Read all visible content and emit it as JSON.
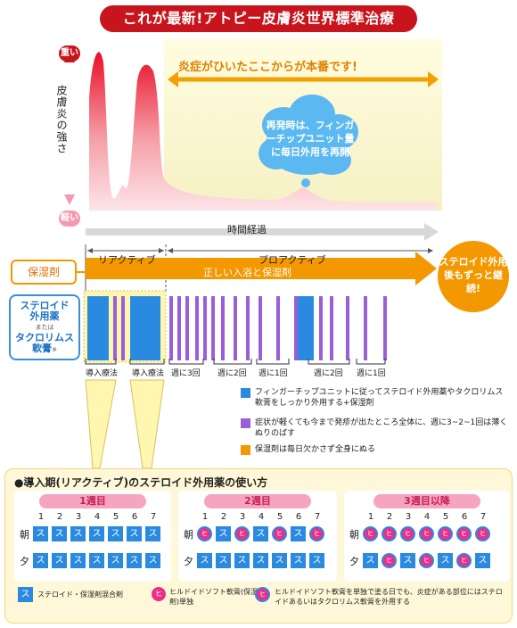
{
  "title": "これが最新!アトピー皮膚炎世界標準治療",
  "chart": {
    "level_high": "重い",
    "level_low": "軽い",
    "yaxis_label": "皮膚炎の強さ",
    "callout": "炎症がひいたここからが本番です!",
    "cloud": "再発時は、フィンガーチップユニット量に毎日外用を再開",
    "xaxis_label": "時間経過"
  },
  "phases": {
    "reactive": "リアクティブ",
    "proactive": "プロアクティブ"
  },
  "moisturizer": {
    "label": "保湿剤",
    "arrow_text": "正しい入浴と保湿剤"
  },
  "continue_note": "ステロイド外用後もずっと継続!",
  "steroid_box": {
    "line1": "ステロイド",
    "line2": "外用薬",
    "or": "または",
    "line3": "タクロリムス",
    "line4": "軟膏",
    "mark": "※"
  },
  "schedule_labels": [
    "導入療法",
    "導入療法",
    "週に3回",
    "週に2回",
    "週に1回",
    "週に2回",
    "週に1回"
  ],
  "legend": [
    {
      "color": "#2a8ae0",
      "text": "フィンガーチップユニットに従ってステロイド外用薬やタクロリムス軟膏をしっかり外用する+保湿剤"
    },
    {
      "color": "#9a5ed8",
      "text": "症状が軽くても今まで発疹が出たところ全体に、週に3~2~1回は薄くぬりのばす"
    },
    {
      "color": "#f39800",
      "text": "保湿剤は毎日欠かさず全身にぬる"
    }
  ],
  "bottom": {
    "title": "●導入期(リアクティブ)のステロイド外用薬の使い方",
    "weeks": [
      "1週目",
      "2週目",
      "3週目以降"
    ],
    "days": [
      "1",
      "2",
      "3",
      "4",
      "5",
      "6",
      "7"
    ],
    "morning": "朝",
    "evening": "夕",
    "su": "ス",
    "hi": "ヒ",
    "foot": [
      {
        "icon": "ス",
        "text": "ステロイド・保湿剤混合剤"
      },
      {
        "icon": "ヒ",
        "text": "ヒルドイドソフト軟膏(保湿剤)単独"
      },
      {
        "icon": "ヒ",
        "text": "ヒルドイドソフト軟膏を単独で塗る日でも、炎症がある部位にはステロイドあるいはタクロリムス軟膏を外用する"
      }
    ]
  },
  "colors": {
    "red": "#c8141c",
    "orange": "#f39800",
    "blue": "#2a8ae0",
    "purple": "#9a5ed8",
    "pink": "#e8308a",
    "yellow": "#fff8d8"
  }
}
